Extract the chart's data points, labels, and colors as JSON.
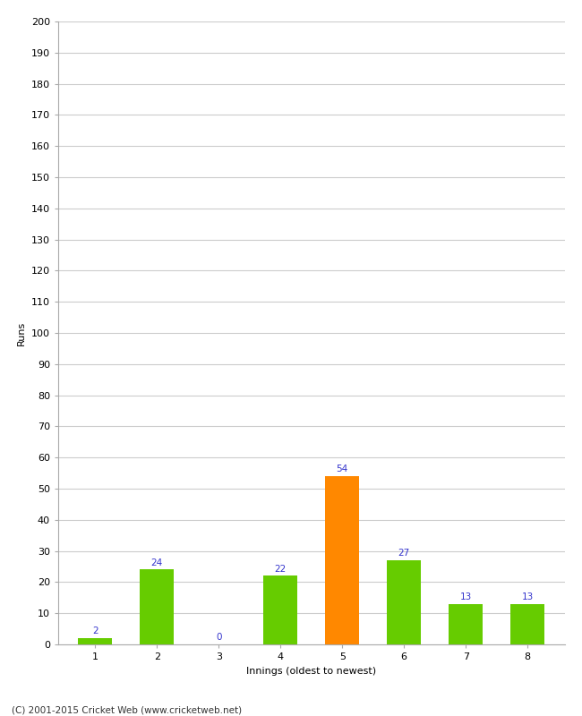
{
  "xlabel": "Innings (oldest to newest)",
  "ylabel": "Runs",
  "categories": [
    "1",
    "2",
    "3",
    "4",
    "5",
    "6",
    "7",
    "8"
  ],
  "values": [
    2,
    24,
    0,
    22,
    54,
    27,
    13,
    13
  ],
  "bar_colors": [
    "#66cc00",
    "#66cc00",
    "#66cc00",
    "#66cc00",
    "#ff8800",
    "#66cc00",
    "#66cc00",
    "#66cc00"
  ],
  "ylim": [
    0,
    200
  ],
  "yticks": [
    0,
    10,
    20,
    30,
    40,
    50,
    60,
    70,
    80,
    90,
    100,
    110,
    120,
    130,
    140,
    150,
    160,
    170,
    180,
    190,
    200
  ],
  "label_color": "#3333cc",
  "label_fontsize": 7.5,
  "footer": "(C) 2001-2015 Cricket Web (www.cricketweb.net)",
  "background_color": "#ffffff",
  "grid_color": "#cccccc",
  "axis_label_fontsize": 8,
  "tick_fontsize": 8,
  "bar_width": 0.55
}
